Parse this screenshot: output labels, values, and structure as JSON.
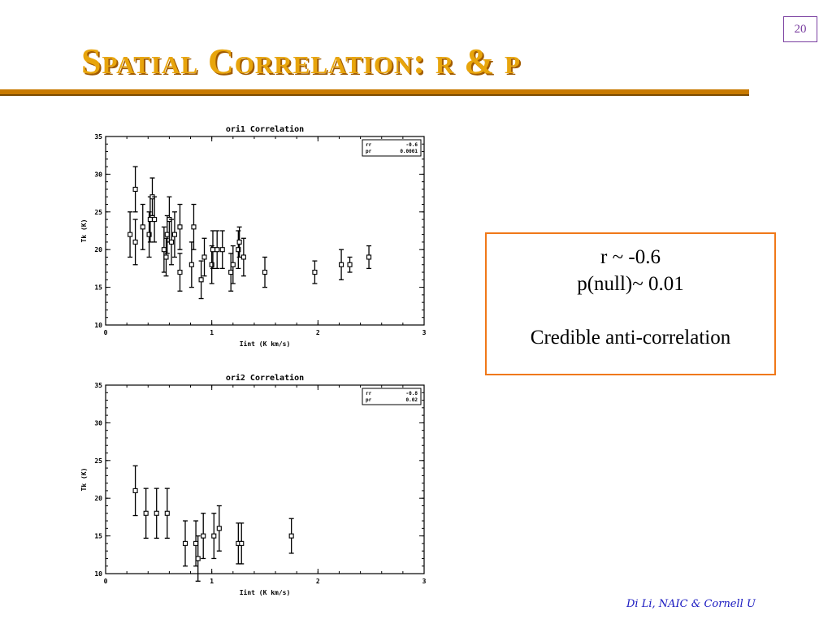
{
  "slide": {
    "title": "Spatial Correlation: r & p",
    "page_number": "20",
    "footer": "Di Li, NAIC & Cornell U"
  },
  "stats_box": {
    "line1": "r ~ -0.6",
    "line2": "p(null)~ 0.01",
    "line3": "Credible anti-correlation"
  },
  "chart_data": [
    {
      "type": "scatter",
      "title": "ori1 Correlation",
      "xlabel": "Iint (K km/s)",
      "ylabel": "Tk (K)",
      "xlim": [
        0,
        3
      ],
      "ylim": [
        10,
        35
      ],
      "xticks": [
        "0",
        "1",
        "2",
        "3"
      ],
      "yticks": [
        "10",
        "15",
        "20",
        "25",
        "30",
        "35"
      ],
      "legend": {
        "placement": "top-right",
        "rows": [
          [
            "rr",
            "-0.6"
          ],
          [
            "pr",
            "0.0001"
          ]
        ]
      },
      "points": [
        {
          "x": 0.23,
          "y": 22,
          "err": 3
        },
        {
          "x": 0.28,
          "y": 21,
          "err": 3
        },
        {
          "x": 0.28,
          "y": 28,
          "err": 3
        },
        {
          "x": 0.35,
          "y": 23,
          "err": 3
        },
        {
          "x": 0.41,
          "y": 22,
          "err": 3
        },
        {
          "x": 0.42,
          "y": 24,
          "err": 3
        },
        {
          "x": 0.44,
          "y": 27,
          "err": 2.5
        },
        {
          "x": 0.46,
          "y": 24,
          "err": 3
        },
        {
          "x": 0.55,
          "y": 20,
          "err": 3
        },
        {
          "x": 0.57,
          "y": 19,
          "err": 2.5
        },
        {
          "x": 0.58,
          "y": 22,
          "err": 2.5
        },
        {
          "x": 0.6,
          "y": 24,
          "err": 3
        },
        {
          "x": 0.62,
          "y": 21,
          "err": 3
        },
        {
          "x": 0.65,
          "y": 22,
          "err": 3
        },
        {
          "x": 0.7,
          "y": 17,
          "err": 2.5
        },
        {
          "x": 0.7,
          "y": 23,
          "err": 3
        },
        {
          "x": 0.81,
          "y": 18,
          "err": 3
        },
        {
          "x": 0.83,
          "y": 23,
          "err": 3
        },
        {
          "x": 0.9,
          "y": 16,
          "err": 2.5
        },
        {
          "x": 0.93,
          "y": 19,
          "err": 2.5
        },
        {
          "x": 1.0,
          "y": 18,
          "err": 2.5
        },
        {
          "x": 1.01,
          "y": 20,
          "err": 2.5
        },
        {
          "x": 1.05,
          "y": 20,
          "err": 2.5
        },
        {
          "x": 1.1,
          "y": 20,
          "err": 2.5
        },
        {
          "x": 1.18,
          "y": 17,
          "err": 2.5
        },
        {
          "x": 1.2,
          "y": 18,
          "err": 2.5
        },
        {
          "x": 1.25,
          "y": 20,
          "err": 2.5
        },
        {
          "x": 1.26,
          "y": 21,
          "err": 2
        },
        {
          "x": 1.3,
          "y": 19,
          "err": 2.5
        },
        {
          "x": 1.5,
          "y": 17,
          "err": 2
        },
        {
          "x": 1.97,
          "y": 17,
          "err": 1.5
        },
        {
          "x": 2.22,
          "y": 18,
          "err": 2
        },
        {
          "x": 2.3,
          "y": 18,
          "err": 1
        },
        {
          "x": 2.48,
          "y": 19,
          "err": 1.5
        }
      ]
    },
    {
      "type": "scatter",
      "title": "ori2 Correlation",
      "xlabel": "Iint (K km/s)",
      "ylabel": "Tk (K)",
      "xlim": [
        0,
        3
      ],
      "ylim": [
        10,
        35
      ],
      "xticks": [
        "0",
        "1",
        "2",
        "3"
      ],
      "yticks": [
        "10",
        "15",
        "20",
        "25",
        "30",
        "35"
      ],
      "legend": {
        "placement": "top-right",
        "rows": [
          [
            "rr",
            "-0.8"
          ],
          [
            "pr",
            "0.02"
          ]
        ]
      },
      "points": [
        {
          "x": 0.28,
          "y": 21,
          "err": 3.3
        },
        {
          "x": 0.38,
          "y": 18,
          "err": 3.3
        },
        {
          "x": 0.48,
          "y": 18,
          "err": 3.3
        },
        {
          "x": 0.58,
          "y": 18,
          "err": 3.3
        },
        {
          "x": 0.75,
          "y": 14,
          "err": 3
        },
        {
          "x": 0.85,
          "y": 14,
          "err": 3
        },
        {
          "x": 0.87,
          "y": 12,
          "err": 3
        },
        {
          "x": 0.92,
          "y": 15,
          "err": 3
        },
        {
          "x": 1.02,
          "y": 15,
          "err": 3
        },
        {
          "x": 1.07,
          "y": 16,
          "err": 3
        },
        {
          "x": 1.25,
          "y": 14,
          "err": 2.7
        },
        {
          "x": 1.28,
          "y": 14,
          "err": 2.7
        },
        {
          "x": 1.75,
          "y": 15,
          "err": 2.3
        }
      ]
    }
  ]
}
